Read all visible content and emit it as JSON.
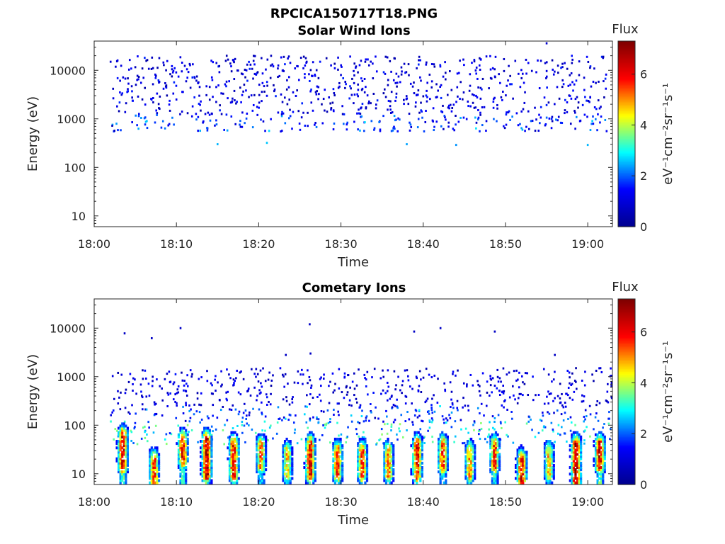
{
  "figure_title": "RPCICA150717T18.PNG",
  "colors": {
    "colormap": "jet",
    "colormap_stops": [
      "#00008f",
      "#0000ff",
      "#00ffff",
      "#ffff00",
      "#ff0000",
      "#800000"
    ]
  },
  "chart_data": [
    {
      "type": "heatmap",
      "title": "Solar Wind Ions",
      "xlabel": "Time",
      "ylabel": "Energy (eV)",
      "y_scale": "log",
      "ylim": [
        6,
        40000
      ],
      "xlim": [
        "18:00",
        "19:03"
      ],
      "x_ticks": [
        "18:00",
        "18:10",
        "18:20",
        "18:30",
        "18:40",
        "18:50",
        "19:00"
      ],
      "y_ticks": [
        "10",
        "100",
        "1000",
        "10000"
      ],
      "colorbar": {
        "label": "Flux",
        "unit": "eV⁻¹cm⁻²sr⁻¹s⁻¹",
        "ticks": [
          "0",
          "2",
          "4",
          "6"
        ],
        "range": [
          0,
          7.3
        ]
      },
      "grid": false,
      "data_summary": "Sparse low-flux (values ~0.5-3) counts scattered between ~500 eV and ~20000 eV over 18:02-19:02; a few isolated points near 300 eV.",
      "sample_points": [
        {
          "time": "18:02",
          "energy": 15000,
          "flux": 0.8
        },
        {
          "time": "18:06",
          "energy": 7000,
          "flux": 1.0
        },
        {
          "time": "18:10",
          "energy": 2500,
          "flux": 1.2
        },
        {
          "time": "18:15",
          "energy": 300,
          "flux": 2.5
        },
        {
          "time": "18:21",
          "energy": 320,
          "flux": 2.6
        },
        {
          "time": "18:30",
          "energy": 8000,
          "flux": 0.9
        },
        {
          "time": "18:38",
          "energy": 300,
          "flux": 2.4
        },
        {
          "time": "18:44",
          "energy": 290,
          "flux": 2.3
        },
        {
          "time": "18:55",
          "energy": 36000,
          "flux": 0.8
        },
        {
          "time": "19:00",
          "energy": 290,
          "flux": 2.5
        }
      ]
    },
    {
      "type": "heatmap",
      "title": "Cometary Ions",
      "xlabel": "Time",
      "ylabel": "Energy (eV)",
      "y_scale": "log",
      "ylim": [
        6,
        40000
      ],
      "xlim": [
        "18:00",
        "19:03"
      ],
      "x_ticks": [
        "18:00",
        "18:10",
        "18:20",
        "18:30",
        "18:40",
        "18:50",
        "19:00"
      ],
      "y_ticks": [
        "10",
        "100",
        "1000",
        "10000"
      ],
      "colorbar": {
        "label": "Flux",
        "unit": "eV⁻¹cm⁻²sr⁻¹s⁻¹",
        "ticks": [
          "0",
          "2",
          "4",
          "6"
        ],
        "range": [
          0,
          7.3
        ]
      },
      "grid": false,
      "data_summary": "Periodic high-flux bursts (up to ~7) at ~10-60 eV, repeating roughly every 3 min; scattered low-flux counts 100-1500 eV; isolated points near 3000-12000 eV.",
      "bursts": [
        {
          "time": "18:03.5",
          "energy_range": [
            15,
            60
          ],
          "peak_flux": 6.8
        },
        {
          "time": "18:07.3",
          "energy_range": [
            7,
            20
          ],
          "peak_flux": 6.0
        },
        {
          "time": "18:10.8",
          "energy_range": [
            20,
            50
          ],
          "peak_flux": 6.5
        },
        {
          "time": "18:13.7",
          "energy_range": [
            10,
            50
          ],
          "peak_flux": 7.0
        },
        {
          "time": "18:17.0",
          "energy_range": [
            10,
            40
          ],
          "peak_flux": 6.5
        },
        {
          "time": "18:20.3",
          "energy_range": [
            15,
            40
          ],
          "peak_flux": 5.5
        },
        {
          "time": "18:23.5",
          "energy_range": [
            10,
            30
          ],
          "peak_flux": 5.0
        },
        {
          "time": "18:26.3",
          "energy_range": [
            10,
            40
          ],
          "peak_flux": 6.5
        },
        {
          "time": "18:29.6",
          "energy_range": [
            10,
            30
          ],
          "peak_flux": 6.0
        },
        {
          "time": "18:32.6",
          "energy_range": [
            10,
            30
          ],
          "peak_flux": 6.0
        },
        {
          "time": "18:35.8",
          "energy_range": [
            10,
            30
          ],
          "peak_flux": 5.5
        },
        {
          "time": "18:39.3",
          "energy_range": [
            10,
            40
          ],
          "peak_flux": 6.5
        },
        {
          "time": "18:42.4",
          "energy_range": [
            15,
            40
          ],
          "peak_flux": 6.0
        },
        {
          "time": "18:45.7",
          "energy_range": [
            10,
            30
          ],
          "peak_flux": 5.5
        },
        {
          "time": "18:48.7",
          "energy_range": [
            15,
            40
          ],
          "peak_flux": 6.0
        },
        {
          "time": "18:52.0",
          "energy_range": [
            7,
            20
          ],
          "peak_flux": 6.5
        },
        {
          "time": "18:55.3",
          "energy_range": [
            10,
            30
          ],
          "peak_flux": 5.0
        },
        {
          "time": "18:58.6",
          "energy_range": [
            7,
            40
          ],
          "peak_flux": 7.0
        },
        {
          "time": "19:01.5",
          "energy_range": [
            15,
            40
          ],
          "peak_flux": 6.8
        }
      ],
      "isolated_points": [
        {
          "time": "18:03.7",
          "energy": 7800,
          "flux": 0.7
        },
        {
          "time": "18:07.0",
          "energy": 6200,
          "flux": 0.7
        },
        {
          "time": "18:10.5",
          "energy": 10000,
          "flux": 0.7
        },
        {
          "time": "18:23.3",
          "energy": 2800,
          "flux": 0.7
        },
        {
          "time": "18:26.2",
          "energy": 12000,
          "flux": 0.7
        },
        {
          "time": "18:26.3",
          "energy": 3000,
          "flux": 0.7
        },
        {
          "time": "18:38.9",
          "energy": 8500,
          "flux": 0.7
        },
        {
          "time": "18:42.1",
          "energy": 10000,
          "flux": 0.7
        },
        {
          "time": "18:48.7",
          "energy": 8500,
          "flux": 0.7
        },
        {
          "time": "18:56.0",
          "energy": 2800,
          "flux": 0.7
        }
      ]
    }
  ]
}
